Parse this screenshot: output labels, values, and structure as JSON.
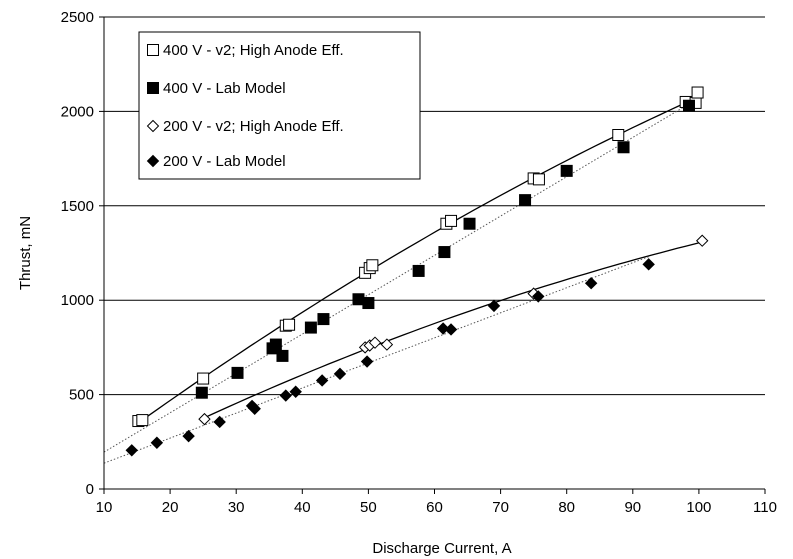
{
  "chart_data": {
    "type": "scatter",
    "xlabel": "Discharge Current, A",
    "ylabel": "Thrust, mN",
    "xlim": [
      10,
      110
    ],
    "ylim": [
      0,
      2500
    ],
    "x_ticks": [
      10,
      20,
      30,
      40,
      50,
      60,
      70,
      80,
      90,
      100,
      110
    ],
    "y_ticks": [
      0,
      500,
      1000,
      1500,
      2000,
      2500
    ],
    "grid": "horizontal",
    "legend_position": "top-left",
    "series": [
      {
        "name": "400 V - v2; High Anode Eff.",
        "marker": "open-square",
        "trend": "solid",
        "points": [
          [
            15.2,
            360
          ],
          [
            15.8,
            365
          ],
          [
            25,
            585
          ],
          [
            37.5,
            865
          ],
          [
            38,
            870
          ],
          [
            49.5,
            1145
          ],
          [
            50.2,
            1170
          ],
          [
            50.6,
            1185
          ],
          [
            61.8,
            1405
          ],
          [
            62.5,
            1420
          ],
          [
            75,
            1645
          ],
          [
            75.8,
            1640
          ],
          [
            87.8,
            1875
          ],
          [
            98,
            2050
          ],
          [
            99.5,
            2045
          ],
          [
            99.8,
            2100
          ]
        ]
      },
      {
        "name": "400 V - Lab Model",
        "marker": "filled-square",
        "trend": "dotted",
        "points": [
          [
            24.8,
            510
          ],
          [
            30.2,
            615
          ],
          [
            35.5,
            745
          ],
          [
            36,
            765
          ],
          [
            37,
            705
          ],
          [
            41.3,
            855
          ],
          [
            43.2,
            900
          ],
          [
            48.5,
            1005
          ],
          [
            50,
            985
          ],
          [
            57.6,
            1155
          ],
          [
            61.5,
            1255
          ],
          [
            65.3,
            1405
          ],
          [
            73.7,
            1530
          ],
          [
            80,
            1685
          ],
          [
            88.6,
            1810
          ],
          [
            98.5,
            2030
          ]
        ]
      },
      {
        "name": "200 V - v2; High Anode Eff.",
        "marker": "open-diamond",
        "trend": "solid",
        "points": [
          [
            25.2,
            370
          ],
          [
            49.5,
            750
          ],
          [
            50.2,
            760
          ],
          [
            51,
            775
          ],
          [
            52.8,
            765
          ],
          [
            75,
            1035
          ],
          [
            100.5,
            1315
          ]
        ]
      },
      {
        "name": "200 V - Lab Model",
        "marker": "filled-diamond",
        "trend": "dotted",
        "points": [
          [
            14.2,
            205
          ],
          [
            18,
            245
          ],
          [
            22.8,
            280
          ],
          [
            27.5,
            355
          ],
          [
            32.4,
            440
          ],
          [
            32.8,
            425
          ],
          [
            37.5,
            495
          ],
          [
            39,
            515
          ],
          [
            43,
            575
          ],
          [
            45.7,
            610
          ],
          [
            49.8,
            675
          ],
          [
            61.3,
            850
          ],
          [
            62.5,
            845
          ],
          [
            69,
            970
          ],
          [
            75.7,
            1020
          ],
          [
            83.7,
            1090
          ],
          [
            92.4,
            1190
          ]
        ]
      }
    ]
  },
  "colors": {
    "marker": "#000000",
    "axis": "#000000",
    "grid": "#000000",
    "solid_line": "#000000",
    "dotted_line": "#555555"
  }
}
